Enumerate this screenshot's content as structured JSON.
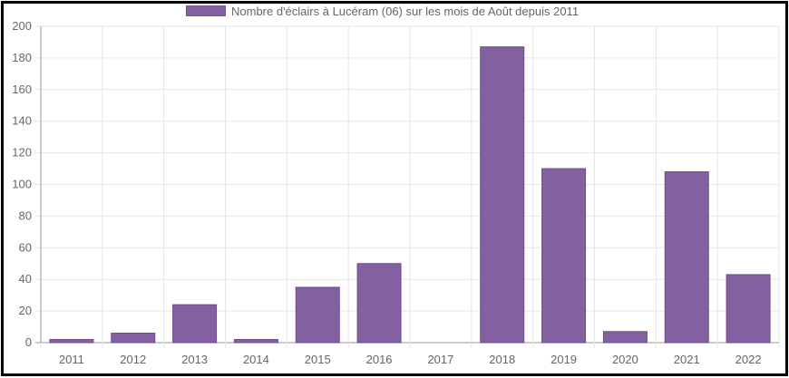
{
  "chart_data": {
    "type": "bar",
    "series": [
      {
        "name": "Nombre d'éclairs à Lucéram (06) sur les mois de Août depuis 2011",
        "color": "#8361a0",
        "values": [
          2,
          6,
          24,
          2,
          35,
          50,
          0,
          187,
          110,
          7,
          108,
          43
        ]
      }
    ],
    "categories": [
      "2011",
      "2012",
      "2013",
      "2014",
      "2015",
      "2016",
      "2017",
      "2018",
      "2019",
      "2020",
      "2021",
      "2022"
    ],
    "ylim": [
      0,
      200
    ],
    "yticks": [
      "0",
      "20",
      "40",
      "60",
      "80",
      "100",
      "120",
      "140",
      "160",
      "180",
      "200"
    ],
    "grid": true,
    "legend_position": "top"
  }
}
